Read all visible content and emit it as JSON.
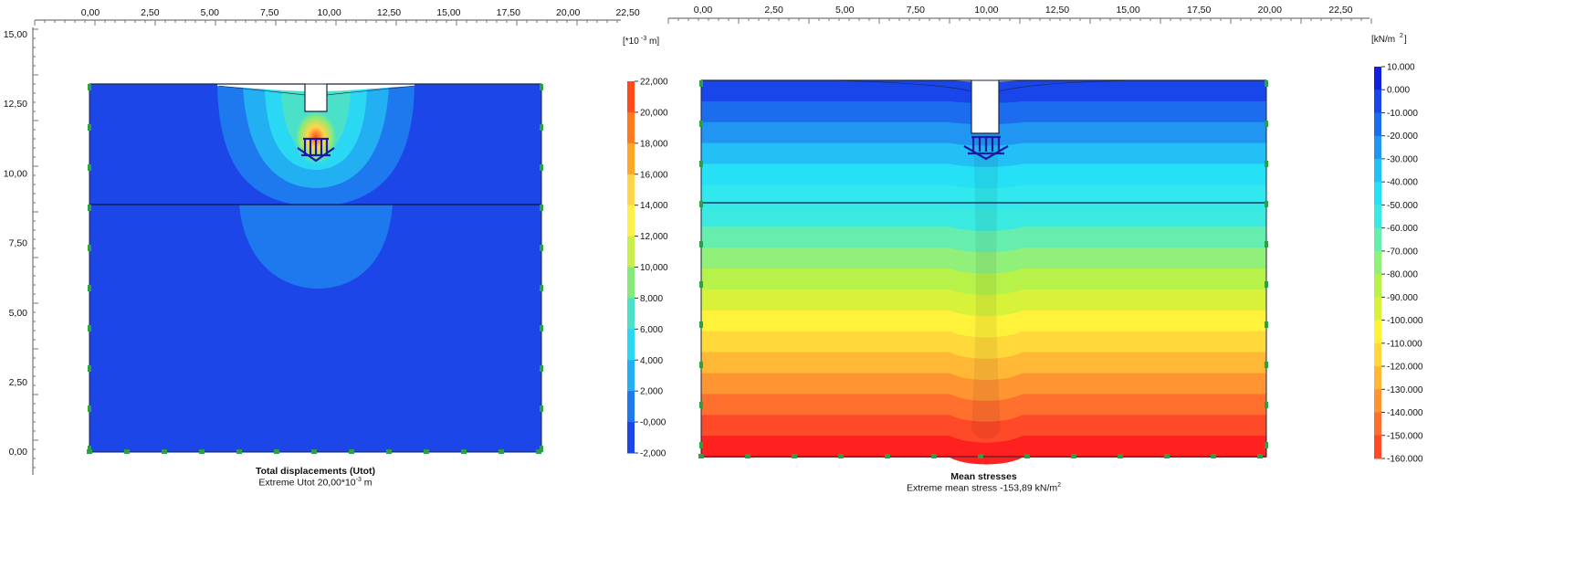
{
  "left": {
    "title": "Total displacements (Utot)",
    "subtitle_prefix": "Extreme Utot 20,00*10",
    "subtitle_exp": "-3",
    "subtitle_suffix": " m",
    "unit_label": "[*10^-3m]",
    "x_ticks": [
      "0,00",
      "2,50",
      "5,00",
      "7,50",
      "10,00",
      "12,50",
      "15,00",
      "17,50",
      "20,00",
      "22,50"
    ],
    "y_ticks": [
      "15,00",
      "12,50",
      "10,00",
      "7,50",
      "5,00",
      "2,50",
      "0,00"
    ],
    "legend_values": [
      "22,000",
      "20,000",
      "18,000",
      "16,000",
      "14,000",
      "12,000",
      "10,000",
      "8,000",
      "6,000",
      "4,000",
      "2,000",
      "-0,000",
      "-2,000"
    ],
    "legend_colors": [
      "#ff4a1c",
      "#ff7a1c",
      "#ffa726",
      "#ffd54a",
      "#fff04a",
      "#c8ef4a",
      "#86ea7a",
      "#4be0c8",
      "#2ad8f4",
      "#23b0f2",
      "#1e78ee",
      "#1c46e8",
      "#1420e0"
    ]
  },
  "right": {
    "title": "Mean stresses",
    "subtitle_prefix": "Extreme mean stress -153,89 kN/m",
    "subtitle_exp": "2",
    "unit_label": "[kN/m2]",
    "x_ticks": [
      "0,00",
      "2,50",
      "5,00",
      "7,50",
      "10,00",
      "12,50",
      "15,00",
      "17,50",
      "20,00",
      "22,50"
    ],
    "legend_values": [
      "10.000",
      "0.000",
      "-10.000",
      "-20.000",
      "-30.000",
      "-40.000",
      "-50.000",
      "-60.000",
      "-70.000",
      "-80.000",
      "-90.000",
      "-100.000",
      "-110.000",
      "-120.000",
      "-130.000",
      "-140.000",
      "-150.000",
      "-160.000"
    ],
    "legend_colors": [
      "#1420e0",
      "#1846ea",
      "#1c6cee",
      "#2096f2",
      "#22c0f4",
      "#26e0f6",
      "#3aeae0",
      "#66eeae",
      "#90f07a",
      "#b6f24a",
      "#d8f23a",
      "#fff23a",
      "#ffd83a",
      "#ffb836",
      "#ff9432",
      "#ff702e",
      "#ff4a28",
      "#ff2020"
    ]
  }
}
